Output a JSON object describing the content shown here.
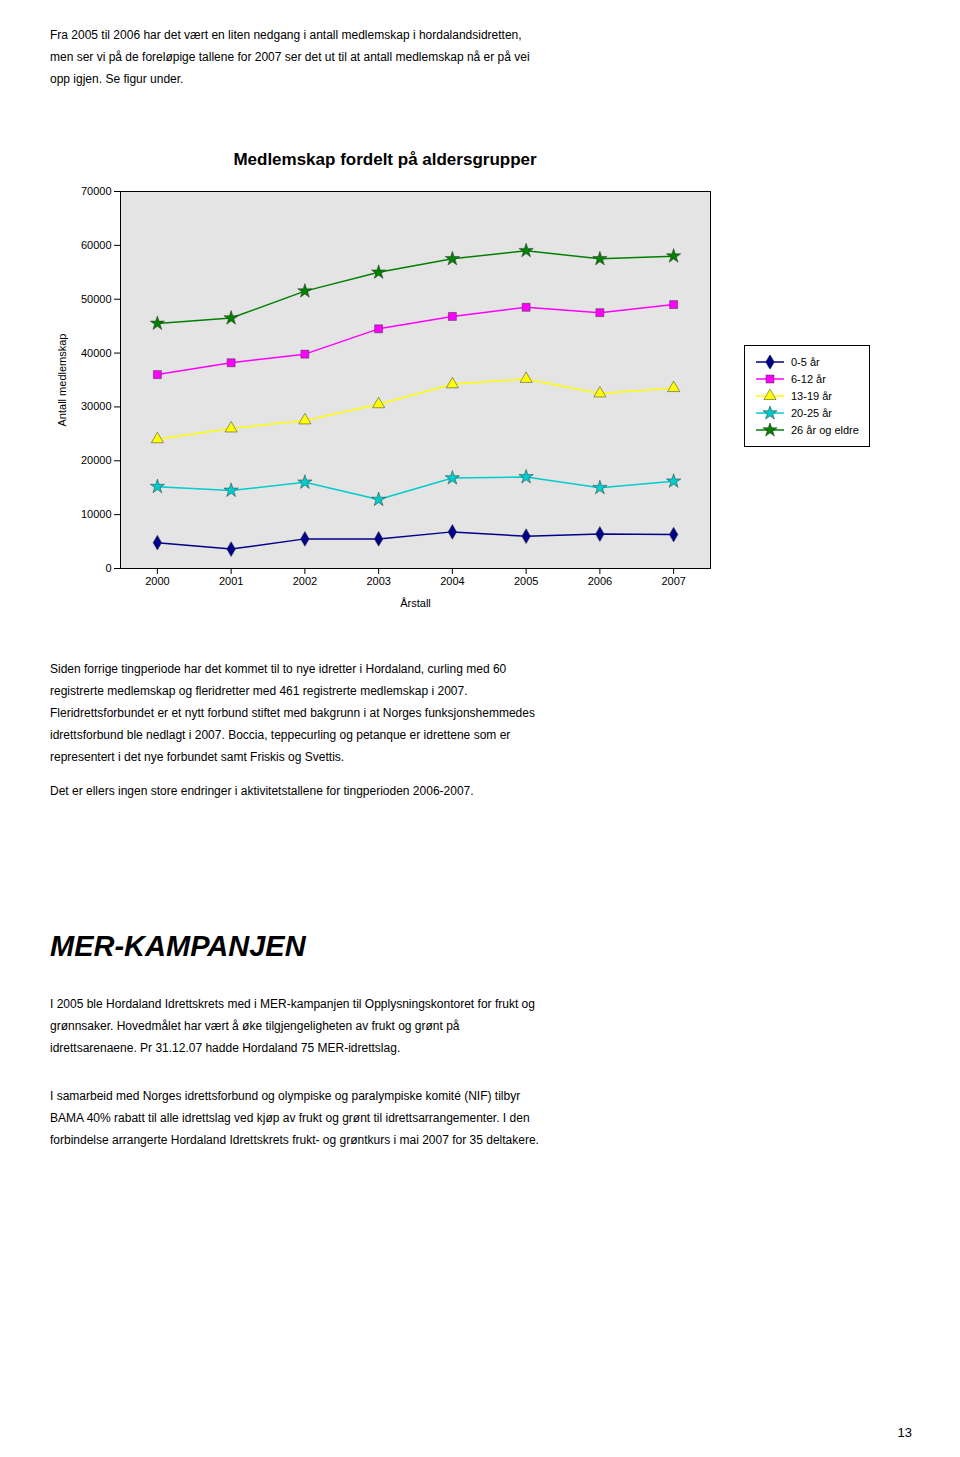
{
  "chart_data": {
    "type": "line",
    "title": "Medlemskap fordelt på aldersgrupper",
    "xlabel": "Årstall",
    "ylabel": "Antall medlemskap",
    "x": [
      2000,
      2001,
      2002,
      2003,
      2004,
      2005,
      2006,
      2007
    ],
    "series": [
      {
        "name": "0-5 år",
        "color": "#00008B",
        "marker": "diamond",
        "line_style": "solid",
        "values": [
          4800,
          3600,
          5500,
          5500,
          6800,
          6000,
          6400,
          6300
        ]
      },
      {
        "name": "6-12 år",
        "color": "#FF00FF",
        "marker": "square",
        "line_style": "solid",
        "values": [
          36000,
          38200,
          39800,
          44500,
          46800,
          48500,
          47500,
          49000
        ]
      },
      {
        "name": "13-19 år",
        "color": "#FFFF00",
        "marker": "triangle",
        "line_style": "solid",
        "values": [
          24000,
          26000,
          27500,
          30500,
          34200,
          35200,
          32500,
          33500
        ]
      },
      {
        "name": "20-25 år",
        "color": "#00CCCC",
        "marker": "star",
        "line_style": "solid",
        "values": [
          15200,
          14500,
          16000,
          12800,
          16800,
          17000,
          15000,
          16200
        ]
      },
      {
        "name": "26 år og eldre",
        "color": "#008000",
        "marker": "star",
        "line_style": "solid",
        "values": [
          45500,
          46500,
          51500,
          55000,
          57500,
          59000,
          57500,
          58000
        ]
      }
    ],
    "xlim": [
      1999.5,
      2007.5
    ],
    "xticks": [
      2000,
      2001,
      2002,
      2003,
      2004,
      2005,
      2006,
      2007
    ],
    "ylim": [
      0,
      70000
    ],
    "yticks": [
      0,
      10000,
      20000,
      30000,
      40000,
      50000,
      60000,
      70000
    ],
    "grid": false,
    "legend": "right",
    "annotations": [
      "Fra 2005 til 2006 har det vært en liten nedgang i antall medlemskap i hordalandsidretten,",
      "men ser vi på de foreløpige tallene for 2007 ser det ut til at antall medlemskap nå er på vei",
      "opp igjen. Se figur under.",
      "Siden forrige tingperiode har det kommet til to nye idretter i Hordaland, curling med 60",
      "registrerte medlemskap og fleridretter med 461 registrerte medlemskap i 2007.",
      "Fleridrettsforbundet er et nytt forbund stiftet med bakgrunn i at Norges funksjonshemmedes",
      "idrettsforbund ble nedlagt i 2007. Boccia, teppecurling og petanque er idrettene som er",
      "representert i det nye forbundet samt Friskis og Svettis.",
      "Det er ellers ingen store endringer i aktivitetstallene for tingperioden 2006-2007.",
      "MER-KAMPANJEN",
      "I 2005 ble Hordaland Idrettskrets med i MER-kampanjen til Opplysningskontoret for frukt og",
      "grønnsaker. Hovedmålet har vært å øke tilgjengeligheten av frukt og grønt på",
      "idrettsarenaene. Pr 31.12.07 hadde Hordaland 75 MER-idrettslag.",
      "I samarbeid med Norges idrettsforbund og olympiske og paralympiske komité (NIF) tilbyr",
      "BAMA 40% rabatt til alle idrettslag ved kjøp av frukt og grønt til idrettsarrangementer. I den",
      "forbindelse arrangerte Hordaland Idrettskrets frukt- og grøntkurs i mai 2007 for 35 deltakere.",
      "13"
    ]
  }
}
